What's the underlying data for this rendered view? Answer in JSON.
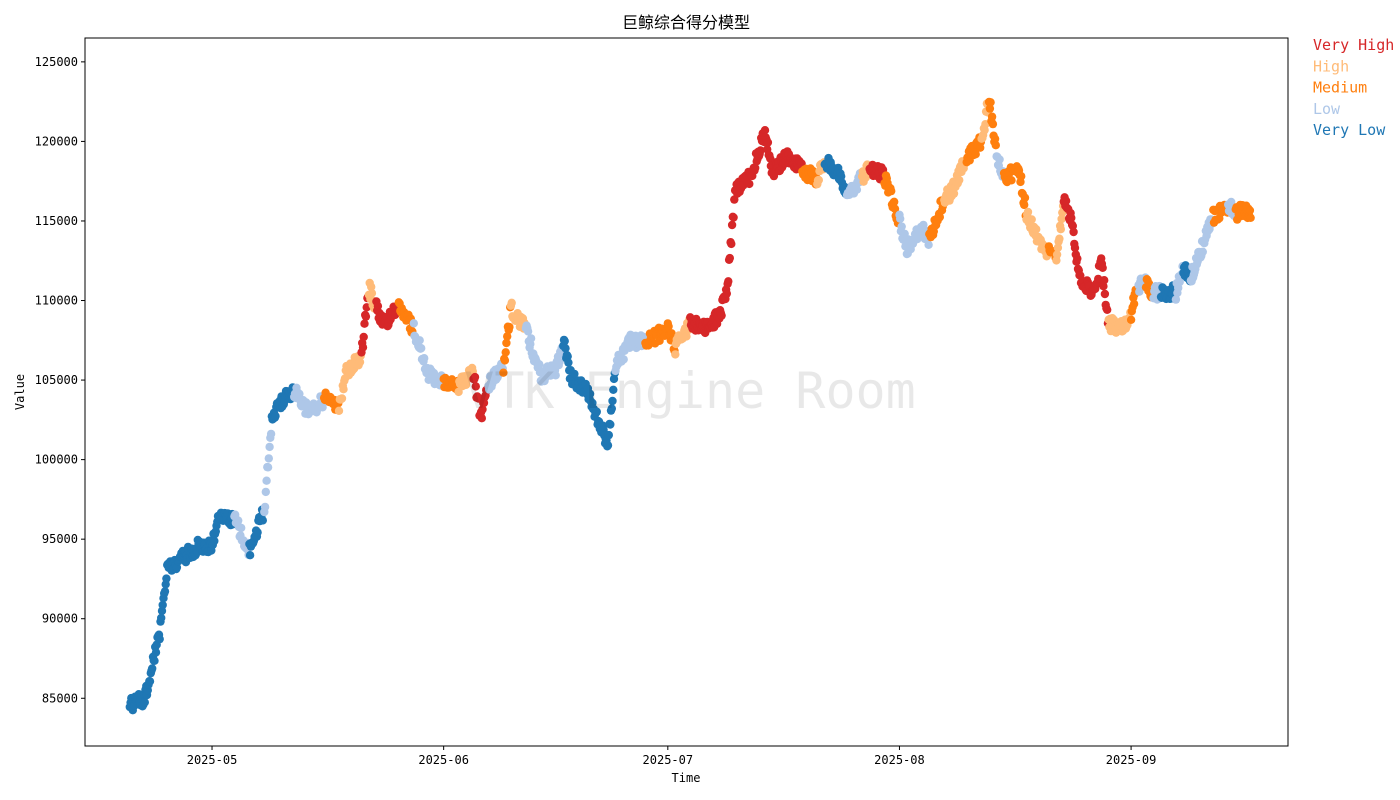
{
  "chart_data": {
    "type": "scatter",
    "title": "巨鲸综合得分模型",
    "xlabel": "Time",
    "ylabel": "Value",
    "watermark": "VTK Engine Room",
    "x_range": [
      "2025-04-14",
      "2025-09-22"
    ],
    "ylim": [
      82000,
      126500
    ],
    "y_ticks": [
      85000,
      90000,
      95000,
      100000,
      105000,
      110000,
      115000,
      120000,
      125000
    ],
    "x_ticks": [
      {
        "date": "2025-05-01",
        "label": "2025-05"
      },
      {
        "date": "2025-06-01",
        "label": "2025-06"
      },
      {
        "date": "2025-07-01",
        "label": "2025-07"
      },
      {
        "date": "2025-08-01",
        "label": "2025-08"
      },
      {
        "date": "2025-09-01",
        "label": "2025-09"
      }
    ],
    "grid": false,
    "legend_position": "outside-top-right",
    "categories": [
      {
        "name": "Very High",
        "color": "#d62728"
      },
      {
        "name": "High",
        "color": "#ffbb78"
      },
      {
        "name": "Medium",
        "color": "#ff7f0e"
      },
      {
        "name": "Low",
        "color": "#aec7e8"
      },
      {
        "name": "Very Low",
        "color": "#1f77b4"
      }
    ],
    "price_path": [
      [
        "2025-04-20",
        84600,
        "Very Low"
      ],
      [
        "2025-04-22",
        85000,
        "Very Low"
      ],
      [
        "2025-04-23",
        87000,
        "Very Low"
      ],
      [
        "2025-04-24",
        89000,
        "Very Low"
      ],
      [
        "2025-04-25",
        93000,
        "Very Low"
      ],
      [
        "2025-04-27",
        93800,
        "Very Low"
      ],
      [
        "2025-04-29",
        94500,
        "Very Low"
      ],
      [
        "2025-05-01",
        94600,
        "Very Low"
      ],
      [
        "2025-05-02",
        96500,
        "Very Low"
      ],
      [
        "2025-05-04",
        96200,
        "Low"
      ],
      [
        "2025-05-05",
        95300,
        "Low"
      ],
      [
        "2025-05-06",
        94300,
        "Very Low"
      ],
      [
        "2025-05-08",
        96800,
        "Low"
      ],
      [
        "2025-05-09",
        102500,
        "Very Low"
      ],
      [
        "2025-05-10",
        103600,
        "Very Low"
      ],
      [
        "2025-05-12",
        104300,
        "Low"
      ],
      [
        "2025-05-14",
        103000,
        "Low"
      ],
      [
        "2025-05-16",
        103800,
        "Medium"
      ],
      [
        "2025-05-18",
        103400,
        "High"
      ],
      [
        "2025-05-19",
        105500,
        "High"
      ],
      [
        "2025-05-21",
        106500,
        "Very High"
      ],
      [
        "2025-05-22",
        110800,
        "High"
      ],
      [
        "2025-05-23",
        109500,
        "Very High"
      ],
      [
        "2025-05-24",
        108500,
        "Very High"
      ],
      [
        "2025-05-26",
        109600,
        "Medium"
      ],
      [
        "2025-05-28",
        108200,
        "Low"
      ],
      [
        "2025-05-30",
        105400,
        "Low"
      ],
      [
        "2025-06-01",
        104800,
        "Medium"
      ],
      [
        "2025-06-03",
        104600,
        "High"
      ],
      [
        "2025-06-05",
        105500,
        "Very High"
      ],
      [
        "2025-06-06",
        102600,
        "Very High"
      ],
      [
        "2025-06-07",
        104800,
        "Low"
      ],
      [
        "2025-06-09",
        105800,
        "Medium"
      ],
      [
        "2025-06-10",
        109500,
        "High"
      ],
      [
        "2025-06-12",
        108200,
        "Low"
      ],
      [
        "2025-06-14",
        105300,
        "Low"
      ],
      [
        "2025-06-16",
        105600,
        "Low"
      ],
      [
        "2025-06-17",
        107500,
        "Very Low"
      ],
      [
        "2025-06-18",
        105200,
        "Very Low"
      ],
      [
        "2025-06-20",
        104500,
        "Very Low"
      ],
      [
        "2025-06-22",
        102000,
        "Very Low"
      ],
      [
        "2025-06-23",
        101000,
        "Very Low"
      ],
      [
        "2025-06-24",
        105800,
        "Low"
      ],
      [
        "2025-06-26",
        107500,
        "Low"
      ],
      [
        "2025-06-28",
        107300,
        "Medium"
      ],
      [
        "2025-07-01",
        108200,
        "Medium"
      ],
      [
        "2025-07-02",
        107000,
        "High"
      ],
      [
        "2025-07-04",
        108500,
        "Very High"
      ],
      [
        "2025-07-06",
        108400,
        "Very High"
      ],
      [
        "2025-07-08",
        109000,
        "Very High"
      ],
      [
        "2025-07-09",
        111000,
        "Very High"
      ],
      [
        "2025-07-10",
        116800,
        "Very High"
      ],
      [
        "2025-07-12",
        117800,
        "Very High"
      ],
      [
        "2025-07-14",
        120500,
        "Very High"
      ],
      [
        "2025-07-15",
        118000,
        "Very High"
      ],
      [
        "2025-07-17",
        119200,
        "Very High"
      ],
      [
        "2025-07-19",
        118200,
        "Medium"
      ],
      [
        "2025-07-21",
        117600,
        "High"
      ],
      [
        "2025-07-22",
        118800,
        "Very Low"
      ],
      [
        "2025-07-24",
        118000,
        "Very Low"
      ],
      [
        "2025-07-25",
        116300,
        "Low"
      ],
      [
        "2025-07-27",
        117800,
        "High"
      ],
      [
        "2025-07-28",
        118400,
        "Very High"
      ],
      [
        "2025-07-30",
        117800,
        "Medium"
      ],
      [
        "2025-08-01",
        115000,
        "Low"
      ],
      [
        "2025-08-02",
        113300,
        "Low"
      ],
      [
        "2025-08-04",
        114500,
        "Low"
      ],
      [
        "2025-08-05",
        113800,
        "Medium"
      ],
      [
        "2025-08-07",
        116500,
        "High"
      ],
      [
        "2025-08-08",
        116800,
        "High"
      ],
      [
        "2025-08-10",
        119000,
        "Medium"
      ],
      [
        "2025-08-12",
        120000,
        "High"
      ],
      [
        "2025-08-13",
        122800,
        "Medium"
      ],
      [
        "2025-08-14",
        119200,
        "Low"
      ],
      [
        "2025-08-15",
        117800,
        "Medium"
      ],
      [
        "2025-08-17",
        118200,
        "Medium"
      ],
      [
        "2025-08-18",
        115500,
        "High"
      ],
      [
        "2025-08-20",
        113300,
        "High"
      ],
      [
        "2025-08-21",
        113000,
        "Medium"
      ],
      [
        "2025-08-22",
        112600,
        "High"
      ],
      [
        "2025-08-23",
        116300,
        "Very High"
      ],
      [
        "2025-08-24",
        115000,
        "Very High"
      ],
      [
        "2025-08-25",
        111500,
        "Very High"
      ],
      [
        "2025-08-27",
        110500,
        "Very High"
      ],
      [
        "2025-08-28",
        112500,
        "Very High"
      ],
      [
        "2025-08-29",
        108500,
        "High"
      ],
      [
        "2025-08-31",
        108300,
        "High"
      ],
      [
        "2025-09-01",
        109200,
        "Medium"
      ],
      [
        "2025-09-02",
        111000,
        "Low"
      ],
      [
        "2025-09-03",
        111000,
        "Medium"
      ],
      [
        "2025-09-04",
        110500,
        "Low"
      ],
      [
        "2025-09-05",
        110500,
        "Very Low"
      ],
      [
        "2025-09-07",
        110500,
        "Low"
      ],
      [
        "2025-09-08",
        112000,
        "Very Low"
      ],
      [
        "2025-09-09",
        111500,
        "Low"
      ],
      [
        "2025-09-11",
        114000,
        "Low"
      ],
      [
        "2025-09-12",
        115300,
        "Medium"
      ],
      [
        "2025-09-14",
        116000,
        "Low"
      ],
      [
        "2025-09-15",
        115400,
        "Medium"
      ],
      [
        "2025-09-16",
        115800,
        "Medium"
      ],
      [
        "2025-09-17",
        115200,
        "Medium"
      ]
    ]
  }
}
